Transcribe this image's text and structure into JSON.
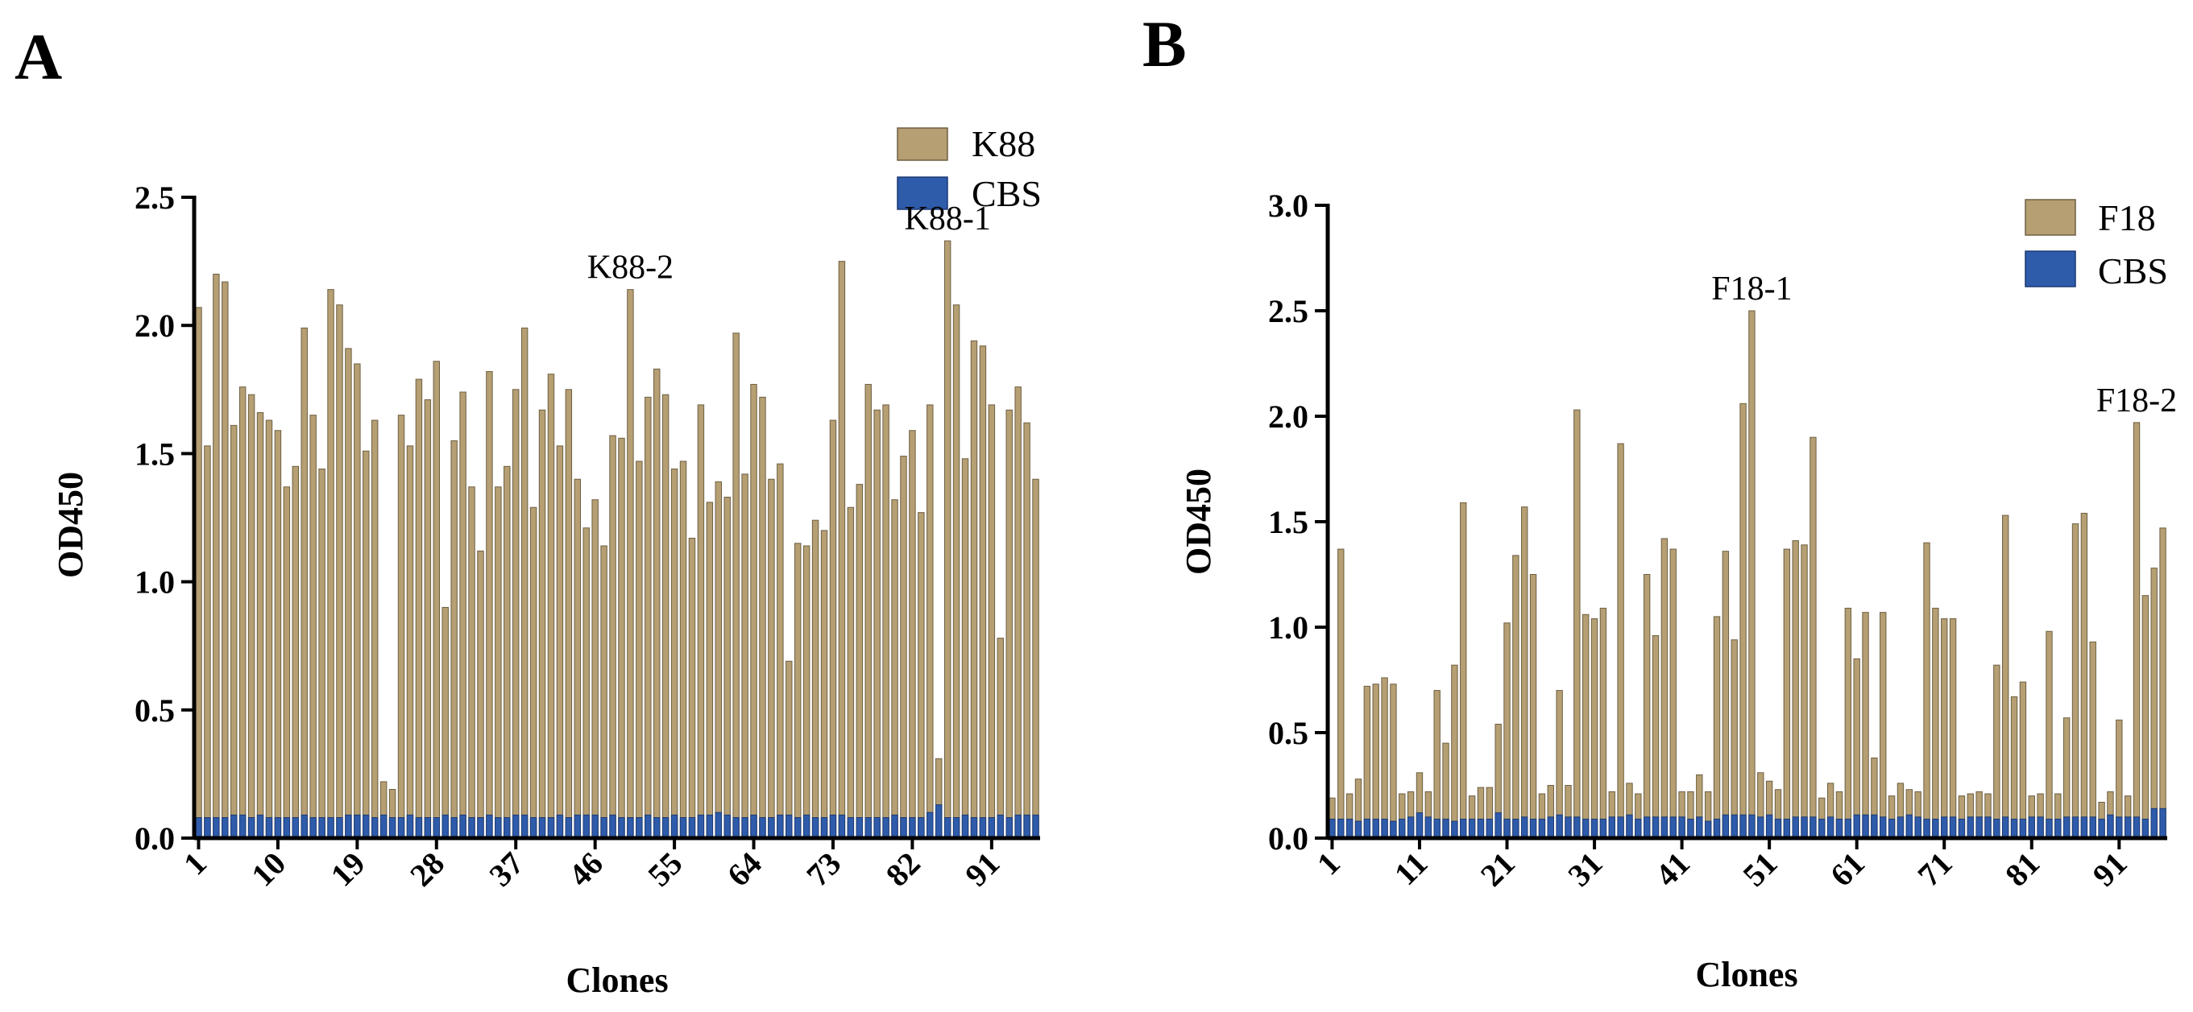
{
  "chart_data": [
    {
      "type": "bar",
      "panel": "A",
      "ylabel": "OD450",
      "xlabel": "Clones",
      "ylim": [
        0,
        2.5
      ],
      "yticks": [
        "0.0",
        "0.5",
        "1.0",
        "1.5",
        "2.0",
        "2.5"
      ],
      "xtick_labels": [
        "1",
        "10",
        "19",
        "28",
        "37",
        "46",
        "55",
        "64",
        "73",
        "82",
        "91"
      ],
      "xtick_clones": [
        1,
        10,
        19,
        28,
        37,
        46,
        55,
        64,
        73,
        82,
        91
      ],
      "legend_position": "top-right",
      "series": [
        {
          "name": "K88",
          "color": "#b59f73",
          "values": [
            2.07,
            1.53,
            2.2,
            2.17,
            1.61,
            1.76,
            1.73,
            1.66,
            1.63,
            1.59,
            1.37,
            1.45,
            1.99,
            1.65,
            1.44,
            2.14,
            2.08,
            1.91,
            1.85,
            1.51,
            1.63,
            0.22,
            0.19,
            1.65,
            1.53,
            1.79,
            1.71,
            1.86,
            0.9,
            1.55,
            1.74,
            1.37,
            1.12,
            1.82,
            1.37,
            1.45,
            1.75,
            1.99,
            1.29,
            1.67,
            1.81,
            1.53,
            1.75,
            1.4,
            1.21,
            1.32,
            1.14,
            1.57,
            1.56,
            2.14,
            1.47,
            1.72,
            1.83,
            1.73,
            1.44,
            1.47,
            1.17,
            1.69,
            1.31,
            1.39,
            1.33,
            1.97,
            1.42,
            1.77,
            1.72,
            1.4,
            1.46,
            0.69,
            1.15,
            1.14,
            1.24,
            1.2,
            1.63,
            2.25,
            1.29,
            1.38,
            1.77,
            1.67,
            1.69,
            1.32,
            1.49,
            1.59,
            1.27,
            1.69,
            0.31,
            2.33,
            2.08,
            1.48,
            1.94,
            1.92,
            1.69,
            0.78,
            1.67,
            1.76,
            1.62,
            1.4
          ]
        },
        {
          "name": "CBS",
          "color": "#2f5bab",
          "values": [
            0.08,
            0.08,
            0.08,
            0.08,
            0.09,
            0.09,
            0.08,
            0.09,
            0.08,
            0.08,
            0.08,
            0.08,
            0.09,
            0.08,
            0.08,
            0.08,
            0.08,
            0.09,
            0.09,
            0.09,
            0.08,
            0.09,
            0.08,
            0.08,
            0.09,
            0.08,
            0.08,
            0.08,
            0.09,
            0.08,
            0.09,
            0.08,
            0.08,
            0.09,
            0.08,
            0.08,
            0.09,
            0.09,
            0.08,
            0.08,
            0.08,
            0.09,
            0.08,
            0.09,
            0.09,
            0.09,
            0.08,
            0.09,
            0.08,
            0.08,
            0.08,
            0.09,
            0.08,
            0.08,
            0.09,
            0.08,
            0.08,
            0.09,
            0.09,
            0.1,
            0.09,
            0.08,
            0.08,
            0.09,
            0.08,
            0.08,
            0.09,
            0.09,
            0.08,
            0.09,
            0.08,
            0.08,
            0.09,
            0.09,
            0.08,
            0.08,
            0.08,
            0.08,
            0.08,
            0.09,
            0.08,
            0.08,
            0.08,
            0.1,
            0.13,
            0.08,
            0.08,
            0.09,
            0.08,
            0.08,
            0.08,
            0.09,
            0.08,
            0.09,
            0.09,
            0.09
          ]
        }
      ],
      "annotations": [
        {
          "text": "K88-2",
          "clone": 50,
          "value": 2.14
        },
        {
          "text": "K88-1",
          "clone": 86,
          "value": 2.33
        }
      ]
    },
    {
      "type": "bar",
      "panel": "B",
      "ylabel": "OD450",
      "xlabel": "Clones",
      "ylim": [
        0,
        3.0
      ],
      "yticks": [
        "0.0",
        "0.5",
        "1.0",
        "1.5",
        "2.0",
        "2.5",
        "3.0"
      ],
      "xtick_labels": [
        "1",
        "11",
        "21",
        "31",
        "41",
        "51",
        "61",
        "71",
        "81",
        "91"
      ],
      "xtick_clones": [
        1,
        11,
        21,
        31,
        41,
        51,
        61,
        71,
        81,
        91
      ],
      "legend_position": "top-right",
      "series": [
        {
          "name": "F18",
          "color": "#b59f73",
          "values": [
            0.19,
            1.37,
            0.21,
            0.28,
            0.72,
            0.73,
            0.76,
            0.73,
            0.21,
            0.22,
            0.31,
            0.22,
            0.7,
            0.45,
            0.82,
            1.59,
            0.2,
            0.24,
            0.24,
            0.54,
            1.02,
            1.34,
            1.57,
            1.25,
            0.21,
            0.25,
            0.7,
            0.25,
            2.03,
            1.06,
            1.04,
            1.09,
            0.22,
            1.87,
            0.26,
            0.21,
            1.25,
            0.96,
            1.42,
            1.37,
            0.22,
            0.22,
            0.3,
            0.22,
            1.05,
            1.36,
            0.94,
            2.06,
            2.5,
            0.31,
            0.27,
            0.23,
            1.37,
            1.41,
            1.39,
            1.9,
            0.19,
            0.26,
            0.22,
            1.09,
            0.85,
            1.07,
            0.38,
            1.07,
            0.2,
            0.26,
            0.23,
            0.22,
            1.4,
            1.09,
            1.04,
            1.04,
            0.2,
            0.21,
            0.22,
            0.21,
            0.82,
            1.53,
            0.67,
            0.74,
            0.2,
            0.21,
            0.98,
            0.21,
            0.57,
            1.49,
            1.54,
            0.93,
            0.17,
            0.22,
            0.56,
            0.2,
            1.97,
            1.15,
            1.28,
            1.47
          ]
        },
        {
          "name": "CBS",
          "color": "#2f5bab",
          "values": [
            0.09,
            0.09,
            0.09,
            0.08,
            0.09,
            0.09,
            0.09,
            0.08,
            0.09,
            0.1,
            0.12,
            0.1,
            0.09,
            0.09,
            0.08,
            0.09,
            0.09,
            0.09,
            0.09,
            0.12,
            0.09,
            0.09,
            0.1,
            0.09,
            0.09,
            0.1,
            0.11,
            0.1,
            0.1,
            0.09,
            0.09,
            0.09,
            0.1,
            0.1,
            0.11,
            0.09,
            0.1,
            0.1,
            0.1,
            0.1,
            0.1,
            0.09,
            0.1,
            0.08,
            0.09,
            0.11,
            0.11,
            0.11,
            0.11,
            0.1,
            0.11,
            0.09,
            0.09,
            0.1,
            0.1,
            0.1,
            0.09,
            0.1,
            0.09,
            0.09,
            0.11,
            0.11,
            0.11,
            0.1,
            0.09,
            0.1,
            0.11,
            0.1,
            0.09,
            0.09,
            0.1,
            0.1,
            0.09,
            0.1,
            0.1,
            0.1,
            0.09,
            0.1,
            0.09,
            0.09,
            0.1,
            0.1,
            0.09,
            0.09,
            0.1,
            0.1,
            0.1,
            0.1,
            0.09,
            0.11,
            0.1,
            0.1,
            0.1,
            0.09,
            0.14,
            0.14
          ]
        }
      ],
      "annotations": [
        {
          "text": "F18-1",
          "clone": 49,
          "value": 2.5
        },
        {
          "text": "F18-2",
          "clone": 93,
          "value": 1.97
        }
      ]
    }
  ]
}
